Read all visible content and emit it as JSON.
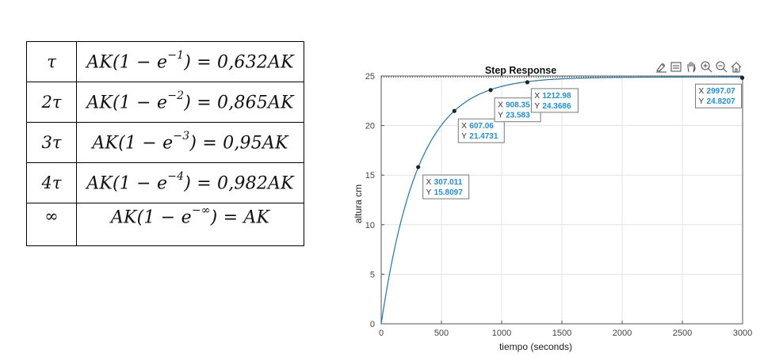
{
  "table": {
    "rows": [
      {
        "key": "τ",
        "pre": "AK(1 − e",
        "exp": "−1",
        "post": ") = 0,632AK"
      },
      {
        "key": "2τ",
        "pre": "AK(1 − e",
        "exp": "−2",
        "post": ") = 0,865AK"
      },
      {
        "key": "3τ",
        "pre": "AK(1 − e",
        "exp": "−3",
        "post": ") = 0,95AK"
      },
      {
        "key": "4τ",
        "pre": "AK(1 − e",
        "exp": "−4",
        "post": ") = 0,982AK"
      },
      {
        "key": "∞",
        "pre": "AK(1 − e",
        "exp": "−∞",
        "post": ") = AK"
      }
    ]
  },
  "toolbar": {
    "icons": [
      "brush-icon",
      "datatip-icon",
      "pan-hand-icon",
      "zoom-in-icon",
      "zoom-out-icon",
      "home-icon"
    ]
  },
  "chart_data": {
    "type": "line",
    "title": "Step Response",
    "xlabel": "tiempo (seconds)",
    "ylabel": "altura cm",
    "xlim": [
      0,
      3000
    ],
    "ylim": [
      0,
      25
    ],
    "xticks": [
      0,
      500,
      1000,
      1500,
      2000,
      2500,
      3000
    ],
    "yticks": [
      0,
      5,
      10,
      15,
      20,
      25
    ],
    "grid": true,
    "final_value": 24.9,
    "series": [
      {
        "model": "first-order step response",
        "gain_final": 24.9,
        "time_constant": 306,
        "color": "#1f77b4"
      }
    ],
    "datatips": [
      {
        "x_label": "X",
        "y_label": "Y",
        "x_text": "307.011",
        "y_text": "15.8097",
        "x": 307.011,
        "y": 15.8097
      },
      {
        "x_label": "X",
        "y_label": "Y",
        "x_text": "607.06",
        "y_text": "21.4731",
        "x": 607.06,
        "y": 21.4731
      },
      {
        "x_label": "X",
        "y_label": "Y",
        "x_text": "908.35",
        "y_text": "23.583",
        "x": 908.35,
        "y": 23.583
      },
      {
        "x_label": "X",
        "y_label": "Y",
        "x_text": "1212.98",
        "y_text": "24.3686",
        "x": 1212.98,
        "y": 24.3686
      },
      {
        "x_label": "X",
        "y_label": "Y",
        "x_text": "2997.07",
        "y_text": "24.8207",
        "x": 2997.07,
        "y": 24.8207
      }
    ],
    "colors": {
      "line": "#1f77b4",
      "datatip_value": "#1f8fde",
      "grid": "#e3e3e3",
      "axis": "#555555"
    }
  }
}
